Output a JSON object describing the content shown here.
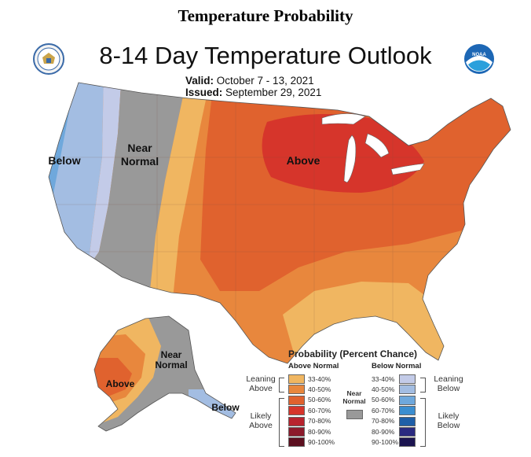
{
  "page": {
    "title": "Temperature Probability"
  },
  "map": {
    "title": "8-14 Day Temperature Outlook",
    "valid_label": "Valid:",
    "valid_value": "October 7 - 13, 2021",
    "issued_label": "Issued:",
    "issued_value": "September 29, 2021",
    "region_labels": {
      "west_below": "Below",
      "near_normal_1": "Near",
      "near_normal_2": "Normal",
      "above": "Above",
      "alaska_above": "Above",
      "alaska_near_1": "Near",
      "alaska_near_2": "Normal",
      "alaska_below": "Below"
    },
    "logos": [
      "department-of-commerce-seal",
      "noaa-logo"
    ]
  },
  "legend": {
    "title": "Probability (Percent Chance)",
    "above_header": "Above Normal",
    "below_header": "Below Normal",
    "near_label_1": "Near",
    "near_label_2": "Normal",
    "near_color": "#999999",
    "leaning_above_1": "Leaning",
    "leaning_above_2": "Above",
    "likely_above_1": "Likely",
    "likely_above_2": "Above",
    "leaning_below_1": "Leaning",
    "leaning_below_2": "Below",
    "likely_below_1": "Likely",
    "likely_below_2": "Below",
    "above_bins": [
      {
        "label": "33-40%",
        "color": "#f0b661"
      },
      {
        "label": "40-50%",
        "color": "#e8873d"
      },
      {
        "label": "50-60%",
        "color": "#e0622e"
      },
      {
        "label": "60-70%",
        "color": "#d6352b"
      },
      {
        "label": "70-80%",
        "color": "#b8232e"
      },
      {
        "label": "80-90%",
        "color": "#8c1a2b"
      },
      {
        "label": "90-100%",
        "color": "#5c0f1f"
      }
    ],
    "below_bins": [
      {
        "label": "33-40%",
        "color": "#c3cbe8"
      },
      {
        "label": "40-50%",
        "color": "#a3bde2"
      },
      {
        "label": "50-60%",
        "color": "#6fa8dc"
      },
      {
        "label": "60-70%",
        "color": "#3b8ed0"
      },
      {
        "label": "70-80%",
        "color": "#1f5fa8"
      },
      {
        "label": "80-90%",
        "color": "#2a2a80"
      },
      {
        "label": "90-100%",
        "color": "#1b1450"
      }
    ]
  }
}
